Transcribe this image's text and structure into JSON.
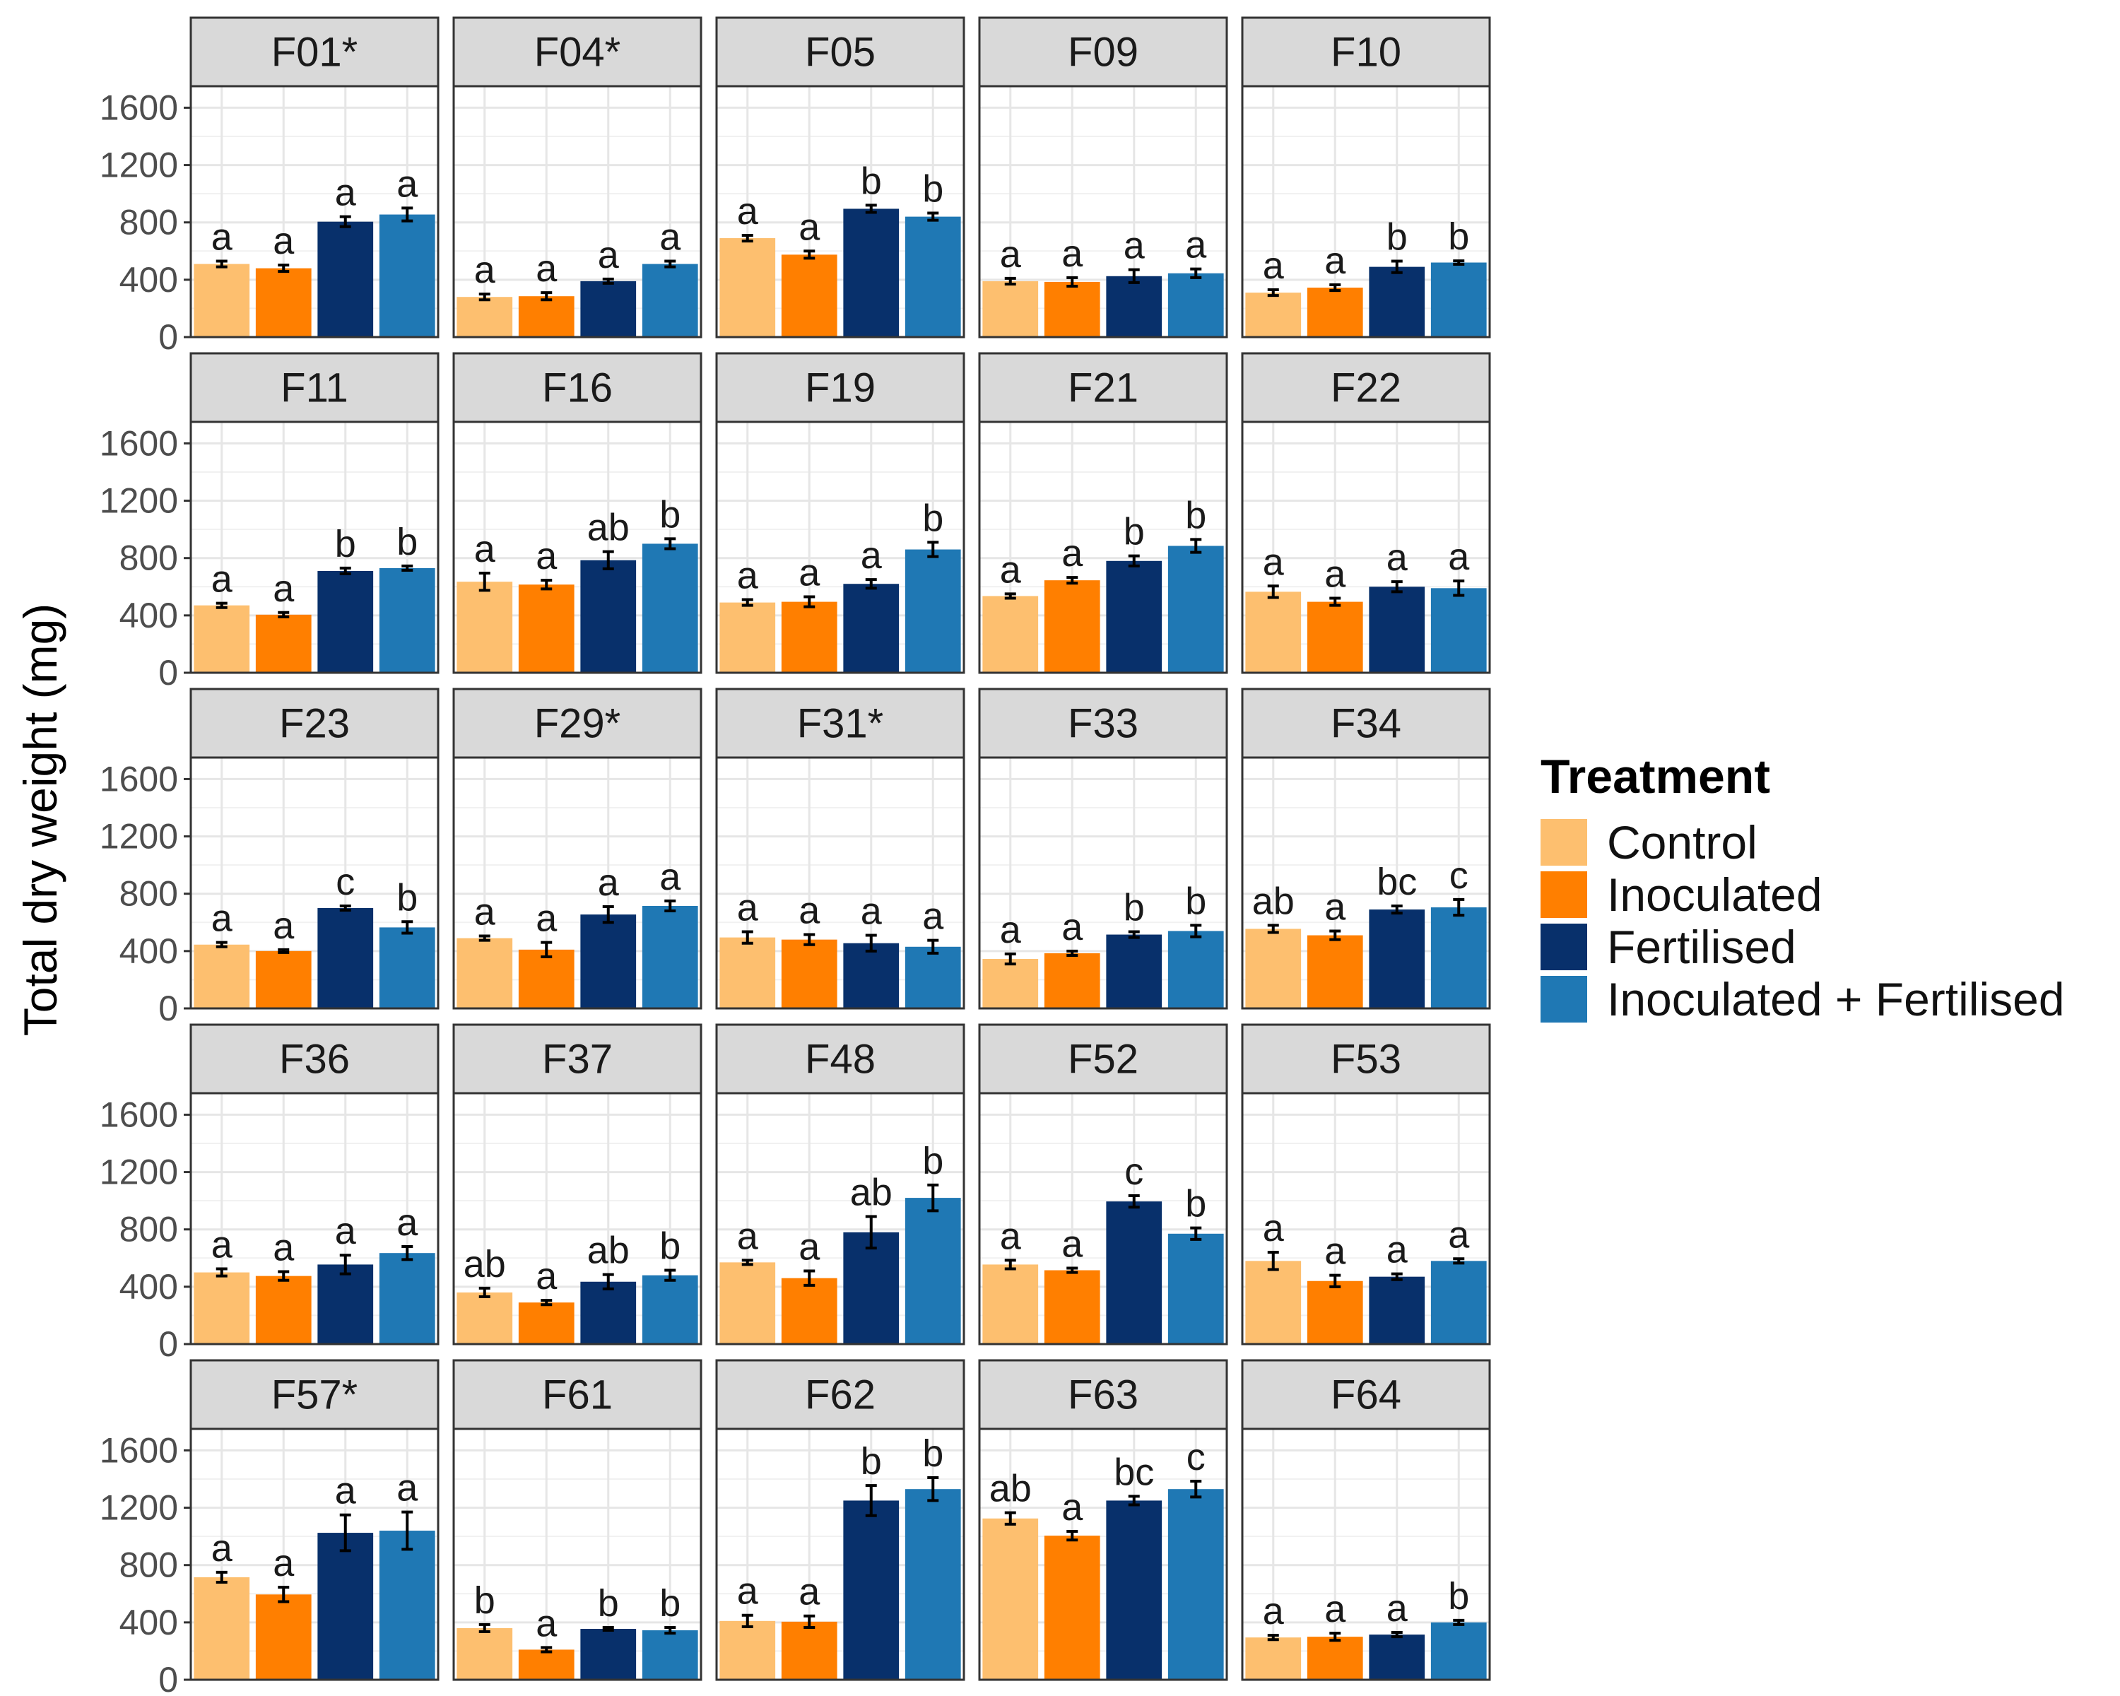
{
  "chart_data": {
    "type": "bar",
    "ylabel": "Total dry weight (mg)",
    "xlabel": "",
    "ylim": [
      0,
      1750
    ],
    "yticks": [
      0,
      400,
      800,
      1200,
      1600
    ],
    "grid": true,
    "legend_position": "right",
    "legend_title": "Treatment",
    "series": [
      {
        "name": "Control",
        "color": "#FDBF6F"
      },
      {
        "name": "Inoculated",
        "color": "#FF7F00"
      },
      {
        "name": "Fertilised",
        "color": "#08306B"
      },
      {
        "name": "Inoculated + Fertilised",
        "color": "#1F78B4"
      }
    ],
    "panels": [
      {
        "title": "F01*",
        "values": [
          510,
          480,
          805,
          855
        ],
        "errors": [
          20,
          22,
          35,
          45
        ],
        "letters": [
          "a",
          "a",
          "a",
          "a"
        ]
      },
      {
        "title": "F04*",
        "values": [
          280,
          285,
          390,
          510
        ],
        "errors": [
          20,
          25,
          15,
          20
        ],
        "letters": [
          "a",
          "a",
          "a",
          "a"
        ]
      },
      {
        "title": "F05",
        "values": [
          690,
          575,
          895,
          840
        ],
        "errors": [
          20,
          25,
          25,
          25
        ],
        "letters": [
          "a",
          "a",
          "b",
          "b"
        ]
      },
      {
        "title": "F09",
        "values": [
          390,
          385,
          425,
          445
        ],
        "errors": [
          20,
          30,
          45,
          30
        ],
        "letters": [
          "a",
          "a",
          "a",
          "a"
        ]
      },
      {
        "title": "F10",
        "values": [
          310,
          345,
          490,
          520
        ],
        "errors": [
          20,
          20,
          40,
          12
        ],
        "letters": [
          "a",
          "a",
          "b",
          "b"
        ]
      },
      {
        "title": "F11",
        "values": [
          470,
          405,
          710,
          730
        ],
        "errors": [
          15,
          15,
          20,
          15
        ],
        "letters": [
          "a",
          "a",
          "b",
          "b"
        ]
      },
      {
        "title": "F16",
        "values": [
          635,
          615,
          785,
          900
        ],
        "errors": [
          60,
          30,
          60,
          35
        ],
        "letters": [
          "a",
          "a",
          "ab",
          "b"
        ]
      },
      {
        "title": "F19",
        "values": [
          490,
          495,
          620,
          860
        ],
        "errors": [
          20,
          35,
          30,
          50
        ],
        "letters": [
          "a",
          "a",
          "a",
          "b"
        ]
      },
      {
        "title": "F21",
        "values": [
          535,
          645,
          780,
          885
        ],
        "errors": [
          15,
          20,
          35,
          45
        ],
        "letters": [
          "a",
          "a",
          "b",
          "b"
        ]
      },
      {
        "title": "F22",
        "values": [
          565,
          495,
          600,
          590
        ],
        "errors": [
          40,
          25,
          35,
          50
        ],
        "letters": [
          "a",
          "a",
          "a",
          "a"
        ]
      },
      {
        "title": "F23",
        "values": [
          445,
          400,
          700,
          565
        ],
        "errors": [
          15,
          10,
          15,
          40
        ],
        "letters": [
          "a",
          "a",
          "c",
          "b"
        ]
      },
      {
        "title": "F29*",
        "values": [
          490,
          410,
          655,
          715
        ],
        "errors": [
          15,
          50,
          55,
          35
        ],
        "letters": [
          "a",
          "a",
          "a",
          "a"
        ]
      },
      {
        "title": "F31*",
        "values": [
          495,
          480,
          455,
          430
        ],
        "errors": [
          40,
          35,
          55,
          45
        ],
        "letters": [
          "a",
          "a",
          "a",
          "a"
        ]
      },
      {
        "title": "F33",
        "values": [
          345,
          385,
          515,
          540
        ],
        "errors": [
          35,
          15,
          20,
          40
        ],
        "letters": [
          "a",
          "a",
          "b",
          "b"
        ]
      },
      {
        "title": "F34",
        "values": [
          555,
          510,
          690,
          705
        ],
        "errors": [
          25,
          30,
          25,
          55
        ],
        "letters": [
          "ab",
          "a",
          "bc",
          "c"
        ]
      },
      {
        "title": "F36",
        "values": [
          500,
          475,
          555,
          635
        ],
        "errors": [
          25,
          30,
          65,
          45
        ],
        "letters": [
          "a",
          "a",
          "a",
          "a"
        ]
      },
      {
        "title": "F37",
        "values": [
          360,
          290,
          435,
          480
        ],
        "errors": [
          30,
          15,
          50,
          35
        ],
        "letters": [
          "ab",
          "a",
          "ab",
          "b"
        ]
      },
      {
        "title": "F48",
        "values": [
          570,
          460,
          780,
          1020
        ],
        "errors": [
          15,
          50,
          110,
          90
        ],
        "letters": [
          "a",
          "a",
          "ab",
          "b"
        ]
      },
      {
        "title": "F52",
        "values": [
          555,
          515,
          995,
          770
        ],
        "errors": [
          30,
          15,
          40,
          40
        ],
        "letters": [
          "a",
          "a",
          "c",
          "b"
        ]
      },
      {
        "title": "F53",
        "values": [
          580,
          440,
          470,
          580
        ],
        "errors": [
          60,
          40,
          20,
          15
        ],
        "letters": [
          "a",
          "a",
          "a",
          "a"
        ]
      },
      {
        "title": "F57*",
        "values": [
          715,
          595,
          1025,
          1040
        ],
        "errors": [
          35,
          50,
          125,
          130
        ],
        "letters": [
          "a",
          "a",
          "a",
          "a"
        ]
      },
      {
        "title": "F61",
        "values": [
          360,
          210,
          355,
          345
        ],
        "errors": [
          25,
          15,
          10,
          20
        ],
        "letters": [
          "b",
          "a",
          "b",
          "b"
        ]
      },
      {
        "title": "F62",
        "values": [
          410,
          405,
          1250,
          1330
        ],
        "errors": [
          40,
          40,
          105,
          80
        ],
        "letters": [
          "a",
          "a",
          "b",
          "b"
        ]
      },
      {
        "title": "F63",
        "values": [
          1125,
          1005,
          1250,
          1330
        ],
        "errors": [
          40,
          30,
          30,
          55
        ],
        "letters": [
          "ab",
          "a",
          "bc",
          "c"
        ]
      },
      {
        "title": "F64",
        "values": [
          295,
          300,
          315,
          400
        ],
        "errors": [
          15,
          25,
          15,
          15
        ],
        "letters": [
          "a",
          "a",
          "a",
          "b"
        ]
      }
    ]
  }
}
